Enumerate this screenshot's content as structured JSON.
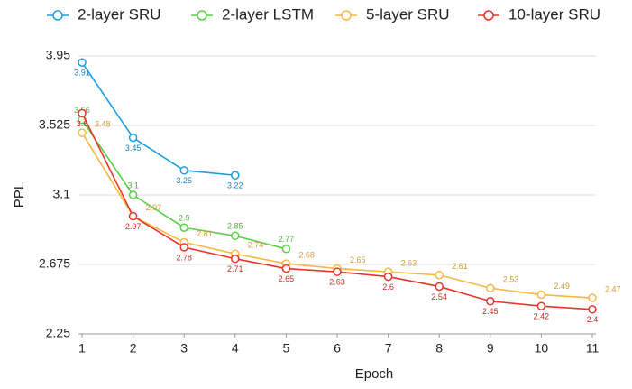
{
  "chart_data": {
    "type": "line",
    "x": [
      1,
      2,
      3,
      4,
      5,
      6,
      7,
      8,
      9,
      10,
      11
    ],
    "xlabel": "Epoch",
    "ylabel": "PPL",
    "series": [
      {
        "name": "2-layer SRU",
        "color": "#1a9fe0",
        "values": [
          3.91,
          3.45,
          3.25,
          3.22,
          null,
          null,
          null,
          null,
          null,
          null,
          null
        ]
      },
      {
        "name": "2-layer LSTM",
        "color": "#5ccf4a",
        "values": [
          3.56,
          3.1,
          2.9,
          2.85,
          2.77,
          null,
          null,
          null,
          null,
          null,
          null
        ]
      },
      {
        "name": "5-layer SRU",
        "color": "#f5b841",
        "values": [
          3.48,
          2.97,
          2.81,
          2.74,
          2.68,
          2.65,
          2.63,
          2.61,
          2.53,
          2.49,
          2.47
        ]
      },
      {
        "name": "10-layer SRU",
        "color": "#e8352b",
        "values": [
          3.6,
          2.97,
          2.78,
          2.71,
          2.65,
          2.63,
          2.6,
          2.54,
          2.45,
          2.42,
          2.4
        ]
      }
    ],
    "xlim": [
      1,
      11
    ],
    "xticks": [
      1,
      2,
      3,
      4,
      5,
      6,
      7,
      8,
      9,
      10,
      11
    ],
    "ylim": [
      2.25,
      3.95
    ],
    "yticks": [
      2.25,
      2.675,
      3.1,
      3.525,
      3.95
    ],
    "grid": true,
    "legend": "top"
  }
}
